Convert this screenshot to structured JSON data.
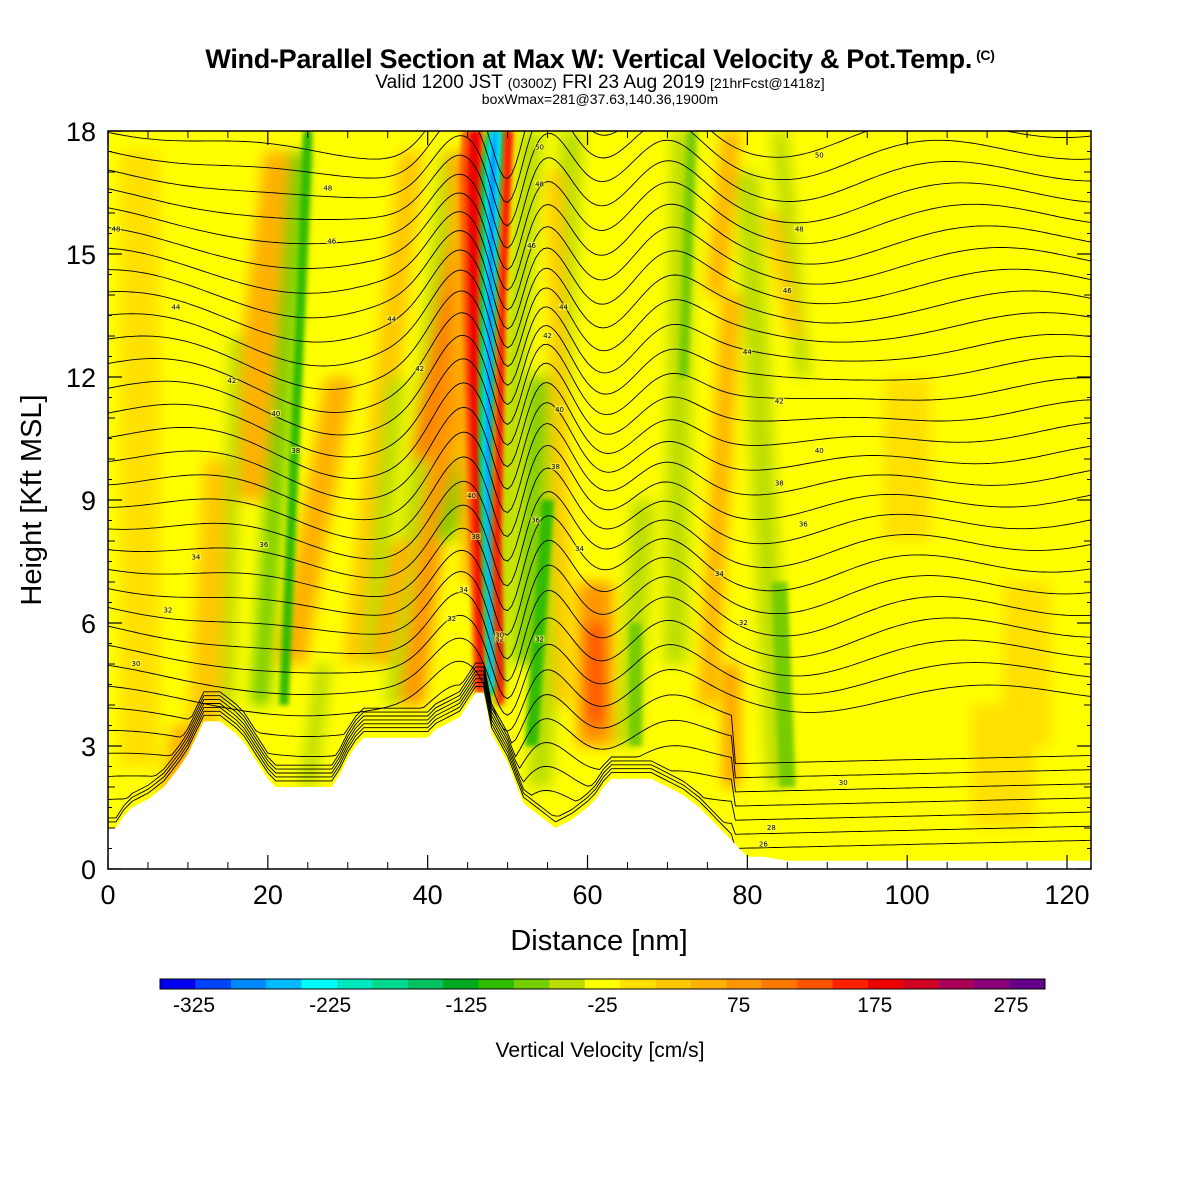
{
  "title": {
    "main": "Wind-Parallel Section at Max W: Vertical Velocity & Pot.Temp.",
    "copyright": "(C)",
    "valid_prefix": "Valid 1200 JST",
    "valid_z": "(0300Z)",
    "valid_date": "FRI 23 Aug 2019",
    "forecast": "[21hrFcst@1418z]",
    "box": "boxWmax=281@37.63,140.36,1900m"
  },
  "chart_data": {
    "type": "heatmap",
    "xlabel": "Distance [nm]",
    "ylabel": "Height [Kft MSL]",
    "xlim": [
      0,
      123
    ],
    "ylim": [
      0,
      18
    ],
    "xticks": [
      "0",
      "20",
      "40",
      "60",
      "80",
      "100",
      "120"
    ],
    "yticks": [
      "0",
      "3",
      "6",
      "9",
      "12",
      "15",
      "18"
    ],
    "colorbar": {
      "title": "Vertical Velocity [cm/s]",
      "tick_labels": [
        "-325",
        "-225",
        "-125",
        "-25",
        "75",
        "175",
        "275"
      ],
      "range": [
        -350,
        300
      ],
      "colors": [
        "#0000ee",
        "#0044ff",
        "#0088ff",
        "#00bbff",
        "#00ffff",
        "#00e8c0",
        "#00d890",
        "#00c060",
        "#00aa20",
        "#33bb00",
        "#77cc00",
        "#bbdd00",
        "#ffff00",
        "#ffe000",
        "#ffc800",
        "#ffb000",
        "#ff9600",
        "#ff7800",
        "#ff5400",
        "#ff2000",
        "#ee0000",
        "#d00022",
        "#aa0055",
        "#880077",
        "#660088"
      ]
    },
    "terrain_profile": {
      "x": [
        0,
        1,
        2,
        3,
        5,
        7,
        9,
        10,
        11,
        12,
        14,
        16,
        17,
        18,
        19,
        20,
        21,
        22,
        25,
        28,
        29,
        30,
        31,
        32,
        34,
        36,
        38,
        40,
        41,
        42,
        44,
        45,
        46,
        47,
        48,
        50,
        52,
        54,
        56,
        58,
        60,
        61,
        62,
        63,
        64,
        66,
        68,
        70,
        72,
        74,
        75,
        76,
        77,
        78,
        79,
        80,
        82,
        85,
        90,
        123
      ],
      "height_kft": [
        1.0,
        1.0,
        1.3,
        1.5,
        1.7,
        2.0,
        2.5,
        2.8,
        3.2,
        3.6,
        3.6,
        3.3,
        3.1,
        2.8,
        2.5,
        2.2,
        2.0,
        2.0,
        2.0,
        2.0,
        2.3,
        2.7,
        3.0,
        3.2,
        3.2,
        3.2,
        3.2,
        3.2,
        3.4,
        3.5,
        3.7,
        4.0,
        4.3,
        4.3,
        3.3,
        2.6,
        1.6,
        1.3,
        1.0,
        1.2,
        1.5,
        1.7,
        2.0,
        2.2,
        2.2,
        2.2,
        2.2,
        2.0,
        1.8,
        1.5,
        1.3,
        1.1,
        0.9,
        0.7,
        0.5,
        0.3,
        0.3,
        0.2,
        0.2,
        0.2
      ]
    },
    "theta_contour_labels": [
      {
        "x": 1,
        "y": 15.6,
        "t": "48"
      },
      {
        "x": 8.5,
        "y": 13.7,
        "t": "44"
      },
      {
        "x": 3.5,
        "y": 5.0,
        "t": "30"
      },
      {
        "x": 7.5,
        "y": 6.3,
        "t": "32"
      },
      {
        "x": 11,
        "y": 7.6,
        "t": "34"
      },
      {
        "x": 19.5,
        "y": 7.9,
        "t": "36"
      },
      {
        "x": 23.5,
        "y": 10.2,
        "t": "38"
      },
      {
        "x": 21,
        "y": 11.1,
        "t": "40"
      },
      {
        "x": 15.5,
        "y": 11.9,
        "t": "42"
      },
      {
        "x": 27.5,
        "y": 16.6,
        "t": "48"
      },
      {
        "x": 28,
        "y": 15.3,
        "t": "46"
      },
      {
        "x": 35.5,
        "y": 13.4,
        "t": "44"
      },
      {
        "x": 39,
        "y": 12.2,
        "t": "42"
      },
      {
        "x": 45.5,
        "y": 9.1,
        "t": "40"
      },
      {
        "x": 46,
        "y": 8.1,
        "t": "38"
      },
      {
        "x": 44.5,
        "y": 6.8,
        "t": "34"
      },
      {
        "x": 43,
        "y": 6.1,
        "t": "32"
      },
      {
        "x": 49,
        "y": 5.6,
        "t": "32"
      },
      {
        "x": 54,
        "y": 5.6,
        "t": "32"
      },
      {
        "x": 53.5,
        "y": 8.5,
        "t": "36"
      },
      {
        "x": 56,
        "y": 9.8,
        "t": "38"
      },
      {
        "x": 56.5,
        "y": 11.2,
        "t": "40"
      },
      {
        "x": 55,
        "y": 13.0,
        "t": "42"
      },
      {
        "x": 57,
        "y": 13.7,
        "t": "44"
      },
      {
        "x": 53,
        "y": 15.2,
        "t": "46"
      },
      {
        "x": 54,
        "y": 16.7,
        "t": "48"
      },
      {
        "x": 54,
        "y": 17.6,
        "t": "50"
      },
      {
        "x": 59,
        "y": 7.8,
        "t": "34"
      },
      {
        "x": 79.5,
        "y": 6.0,
        "t": "32"
      },
      {
        "x": 76.5,
        "y": 7.2,
        "t": "34"
      },
      {
        "x": 87,
        "y": 8.4,
        "t": "36"
      },
      {
        "x": 84,
        "y": 9.4,
        "t": "38"
      },
      {
        "x": 89,
        "y": 10.2,
        "t": "40"
      },
      {
        "x": 84,
        "y": 11.4,
        "t": "42"
      },
      {
        "x": 80,
        "y": 12.6,
        "t": "44"
      },
      {
        "x": 85,
        "y": 14.1,
        "t": "46"
      },
      {
        "x": 86.5,
        "y": 15.6,
        "t": "48"
      },
      {
        "x": 89,
        "y": 17.4,
        "t": "50"
      },
      {
        "x": 92,
        "y": 2.1,
        "t": "30"
      },
      {
        "x": 83,
        "y": 1.0,
        "t": "28"
      },
      {
        "x": 82,
        "y": 0.6,
        "t": "26"
      },
      {
        "x": 49,
        "y": 5.7,
        "t": "30"
      }
    ]
  }
}
